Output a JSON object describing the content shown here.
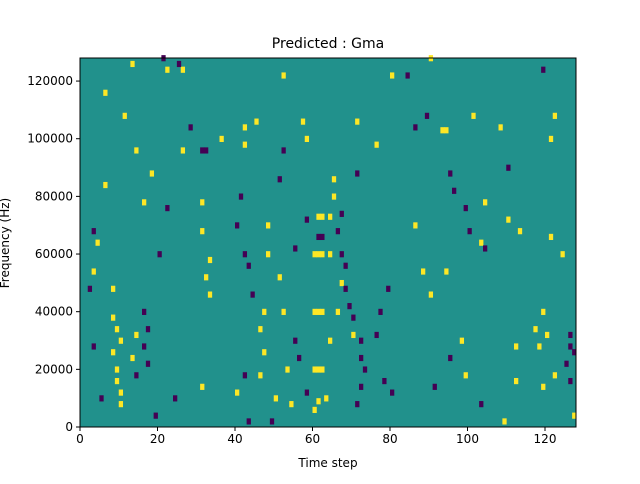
{
  "chart_data": {
    "type": "heatmap",
    "title": "Predicted : Gma",
    "xlabel": "Time step",
    "ylabel": "Frequency (Hz)",
    "xlim": [
      0,
      128
    ],
    "ylim": [
      0,
      128000
    ],
    "x_ticks": [
      {
        "value": 0,
        "label": "0"
      },
      {
        "value": 20,
        "label": "20"
      },
      {
        "value": 40,
        "label": "40"
      },
      {
        "value": 60,
        "label": "60"
      },
      {
        "value": 80,
        "label": "80"
      },
      {
        "value": 100,
        "label": "100"
      },
      {
        "value": 120,
        "label": "120"
      }
    ],
    "y_ticks": [
      {
        "value": 0,
        "label": "0"
      },
      {
        "value": 20000,
        "label": "20000"
      },
      {
        "value": 40000,
        "label": "40000"
      },
      {
        "value": 60000,
        "label": "60000"
      },
      {
        "value": 80000,
        "label": "80000"
      },
      {
        "value": 100000,
        "label": "100000"
      },
      {
        "value": 120000,
        "label": "120000"
      }
    ],
    "colormap": "viridis",
    "colors": {
      "low": "#440154",
      "mid": "#21918c",
      "high": "#fde725"
    },
    "background_value": 0,
    "cells": [
      {
        "t": 60,
        "f": 60000,
        "value": 1
      },
      {
        "t": 61,
        "f": 60000,
        "value": 1
      },
      {
        "t": 62,
        "f": 60000,
        "value": 1
      },
      {
        "t": 60,
        "f": 40000,
        "value": 1
      },
      {
        "t": 61,
        "f": 40000,
        "value": 1
      },
      {
        "t": 62,
        "f": 40000,
        "value": 1
      },
      {
        "t": 60,
        "f": 20000,
        "value": 1
      },
      {
        "t": 61,
        "f": 20000,
        "value": 1
      },
      {
        "t": 62,
        "f": 20000,
        "value": 1
      },
      {
        "t": 61,
        "f": 73000,
        "value": 1
      },
      {
        "t": 62,
        "f": 73000,
        "value": 1
      },
      {
        "t": 63,
        "f": 10000,
        "value": 1
      },
      {
        "t": 64,
        "f": 30000,
        "value": 1
      },
      {
        "t": 64,
        "f": 60000,
        "value": 1
      },
      {
        "t": 64,
        "f": 73000,
        "value": 1
      },
      {
        "t": 60,
        "f": 6000,
        "value": 1
      },
      {
        "t": 61,
        "f": 9000,
        "value": 1
      },
      {
        "t": 65,
        "f": 86000,
        "value": 1
      },
      {
        "t": 65,
        "f": 80000,
        "value": 1
      },
      {
        "t": 8,
        "f": 38000,
        "value": 1
      },
      {
        "t": 9,
        "f": 34000,
        "value": 1
      },
      {
        "t": 8,
        "f": 26000,
        "value": 1
      },
      {
        "t": 9,
        "f": 20000,
        "value": 1
      },
      {
        "t": 9,
        "f": 16000,
        "value": 1
      },
      {
        "t": 10,
        "f": 12000,
        "value": 1
      },
      {
        "t": 10,
        "f": 8000,
        "value": 1
      },
      {
        "t": 10,
        "f": 30000,
        "value": 1
      },
      {
        "t": 8,
        "f": 48000,
        "value": 1
      },
      {
        "t": 93,
        "f": 103000,
        "value": 1
      },
      {
        "t": 94,
        "f": 103000,
        "value": 1
      },
      {
        "t": 32,
        "f": 52000,
        "value": 1
      },
      {
        "t": 33,
        "f": 46000,
        "value": 1
      },
      {
        "t": 31,
        "f": 68000,
        "value": 1
      },
      {
        "t": 31,
        "f": 78000,
        "value": 1
      },
      {
        "t": 33,
        "f": 58000,
        "value": 1
      },
      {
        "t": 31,
        "f": 14000,
        "value": 1
      },
      {
        "t": 46,
        "f": 34000,
        "value": 1
      },
      {
        "t": 47,
        "f": 26000,
        "value": 1
      },
      {
        "t": 48,
        "f": 60000,
        "value": 1
      },
      {
        "t": 48,
        "f": 70000,
        "value": 1
      },
      {
        "t": 47,
        "f": 40000,
        "value": 1
      },
      {
        "t": 46,
        "f": 18000,
        "value": 1
      },
      {
        "t": 42,
        "f": 104000,
        "value": 1
      },
      {
        "t": 42,
        "f": 98000,
        "value": 1
      },
      {
        "t": 40,
        "f": 12000,
        "value": 1
      },
      {
        "t": 117,
        "f": 34000,
        "value": 1
      },
      {
        "t": 118,
        "f": 28000,
        "value": 1
      },
      {
        "t": 119,
        "f": 14000,
        "value": 1
      },
      {
        "t": 120,
        "f": 32000,
        "value": 1
      },
      {
        "t": 122,
        "f": 18000,
        "value": 1
      },
      {
        "t": 119,
        "f": 40000,
        "value": 1
      },
      {
        "t": 121,
        "f": 100000,
        "value": 1
      },
      {
        "t": 122,
        "f": 108000,
        "value": 1
      },
      {
        "t": 121,
        "f": 66000,
        "value": 1
      },
      {
        "t": 127,
        "f": 4000,
        "value": 1
      },
      {
        "t": 109,
        "f": 2000,
        "value": 1
      },
      {
        "t": 103,
        "f": 64000,
        "value": 1
      },
      {
        "t": 98,
        "f": 30000,
        "value": 1
      },
      {
        "t": 99,
        "f": 18000,
        "value": 1
      },
      {
        "t": 94,
        "f": 54000,
        "value": 1
      },
      {
        "t": 14,
        "f": 32000,
        "value": 1
      },
      {
        "t": 13,
        "f": 24000,
        "value": 1
      },
      {
        "t": 16,
        "f": 78000,
        "value": 1
      },
      {
        "t": 22,
        "f": 124000,
        "value": 1
      },
      {
        "t": 26,
        "f": 124000,
        "value": 1
      },
      {
        "t": 14,
        "f": 96000,
        "value": 1
      },
      {
        "t": 18,
        "f": 88000,
        "value": 1
      },
      {
        "t": 4,
        "f": 64000,
        "value": 1
      },
      {
        "t": 3,
        "f": 54000,
        "value": 1
      },
      {
        "t": 6,
        "f": 84000,
        "value": 1
      },
      {
        "t": 11,
        "f": 108000,
        "value": 1
      },
      {
        "t": 6,
        "f": 116000,
        "value": 1
      },
      {
        "t": 13,
        "f": 126000,
        "value": 1
      },
      {
        "t": 26,
        "f": 96000,
        "value": 1
      },
      {
        "t": 36,
        "f": 100000,
        "value": 1
      },
      {
        "t": 45,
        "f": 106000,
        "value": 1
      },
      {
        "t": 51,
        "f": 52000,
        "value": 1
      },
      {
        "t": 52,
        "f": 40000,
        "value": 1
      },
      {
        "t": 50,
        "f": 10000,
        "value": 1
      },
      {
        "t": 53,
        "f": 20000,
        "value": 1
      },
      {
        "t": 54,
        "f": 8000,
        "value": 1
      },
      {
        "t": 52,
        "f": 122000,
        "value": 1
      },
      {
        "t": 57,
        "f": 106000,
        "value": 1
      },
      {
        "t": 58,
        "f": 100000,
        "value": 1
      },
      {
        "t": 66,
        "f": 40000,
        "value": 1
      },
      {
        "t": 67,
        "f": 50000,
        "value": 1
      },
      {
        "t": 70,
        "f": 32000,
        "value": 1
      },
      {
        "t": 71,
        "f": 106000,
        "value": 1
      },
      {
        "t": 76,
        "f": 98000,
        "value": 1
      },
      {
        "t": 80,
        "f": 122000,
        "value": 1
      },
      {
        "t": 86,
        "f": 70000,
        "value": 1
      },
      {
        "t": 88,
        "f": 54000,
        "value": 1
      },
      {
        "t": 90,
        "f": 46000,
        "value": 1
      },
      {
        "t": 101,
        "f": 108000,
        "value": 1
      },
      {
        "t": 108,
        "f": 104000,
        "value": 1
      },
      {
        "t": 104,
        "f": 78000,
        "value": 1
      },
      {
        "t": 110,
        "f": 72000,
        "value": 1
      },
      {
        "t": 112,
        "f": 28000,
        "value": 1
      },
      {
        "t": 113,
        "f": 68000,
        "value": 1
      },
      {
        "t": 124,
        "f": 60000,
        "value": 1
      },
      {
        "t": 112,
        "f": 16000,
        "value": 1
      },
      {
        "t": 90,
        "f": 128000,
        "value": 1
      },
      {
        "t": 61,
        "f": 66000,
        "value": -1
      },
      {
        "t": 62,
        "f": 66000,
        "value": -1
      },
      {
        "t": 67,
        "f": 60000,
        "value": -1
      },
      {
        "t": 68,
        "f": 56000,
        "value": -1
      },
      {
        "t": 68,
        "f": 48000,
        "value": -1
      },
      {
        "t": 69,
        "f": 42000,
        "value": -1
      },
      {
        "t": 70,
        "f": 38000,
        "value": -1
      },
      {
        "t": 72,
        "f": 30000,
        "value": -1
      },
      {
        "t": 72,
        "f": 24000,
        "value": -1
      },
      {
        "t": 73,
        "f": 20000,
        "value": -1
      },
      {
        "t": 72,
        "f": 14000,
        "value": -1
      },
      {
        "t": 71,
        "f": 8000,
        "value": -1
      },
      {
        "t": 76,
        "f": 32000,
        "value": -1
      },
      {
        "t": 77,
        "f": 40000,
        "value": -1
      },
      {
        "t": 79,
        "f": 48000,
        "value": -1
      },
      {
        "t": 78,
        "f": 16000,
        "value": -1
      },
      {
        "t": 80,
        "f": 12000,
        "value": -1
      },
      {
        "t": 66,
        "f": 68000,
        "value": -1
      },
      {
        "t": 67,
        "f": 74000,
        "value": -1
      },
      {
        "t": 71,
        "f": 88000,
        "value": -1
      },
      {
        "t": 3,
        "f": 68000,
        "value": -1
      },
      {
        "t": 2,
        "f": 48000,
        "value": -1
      },
      {
        "t": 5,
        "f": 10000,
        "value": -1
      },
      {
        "t": 3,
        "f": 28000,
        "value": -1
      },
      {
        "t": 16,
        "f": 40000,
        "value": -1
      },
      {
        "t": 16,
        "f": 28000,
        "value": -1
      },
      {
        "t": 17,
        "f": 22000,
        "value": -1
      },
      {
        "t": 17,
        "f": 34000,
        "value": -1
      },
      {
        "t": 14,
        "f": 18000,
        "value": -1
      },
      {
        "t": 20,
        "f": 60000,
        "value": -1
      },
      {
        "t": 22,
        "f": 76000,
        "value": -1
      },
      {
        "t": 24,
        "f": 10000,
        "value": -1
      },
      {
        "t": 19,
        "f": 4000,
        "value": -1
      },
      {
        "t": 31,
        "f": 96000,
        "value": -1
      },
      {
        "t": 32,
        "f": 96000,
        "value": -1
      },
      {
        "t": 28,
        "f": 104000,
        "value": -1
      },
      {
        "t": 21,
        "f": 128000,
        "value": -1
      },
      {
        "t": 25,
        "f": 126000,
        "value": -1
      },
      {
        "t": 40,
        "f": 70000,
        "value": -1
      },
      {
        "t": 41,
        "f": 80000,
        "value": -1
      },
      {
        "t": 42,
        "f": 60000,
        "value": -1
      },
      {
        "t": 43,
        "f": 56000,
        "value": -1
      },
      {
        "t": 44,
        "f": 46000,
        "value": -1
      },
      {
        "t": 42,
        "f": 18000,
        "value": -1
      },
      {
        "t": 43,
        "f": 2000,
        "value": -1
      },
      {
        "t": 49,
        "f": 2000,
        "value": -1
      },
      {
        "t": 55,
        "f": 30000,
        "value": -1
      },
      {
        "t": 56,
        "f": 24000,
        "value": -1
      },
      {
        "t": 58,
        "f": 12000,
        "value": -1
      },
      {
        "t": 55,
        "f": 62000,
        "value": -1
      },
      {
        "t": 51,
        "f": 86000,
        "value": -1
      },
      {
        "t": 52,
        "f": 96000,
        "value": -1
      },
      {
        "t": 58,
        "f": 72000,
        "value": -1
      },
      {
        "t": 89,
        "f": 108000,
        "value": -1
      },
      {
        "t": 95,
        "f": 88000,
        "value": -1
      },
      {
        "t": 96,
        "f": 82000,
        "value": -1
      },
      {
        "t": 99,
        "f": 76000,
        "value": -1
      },
      {
        "t": 100,
        "f": 68000,
        "value": -1
      },
      {
        "t": 104,
        "f": 62000,
        "value": -1
      },
      {
        "t": 95,
        "f": 24000,
        "value": -1
      },
      {
        "t": 103,
        "f": 8000,
        "value": -1
      },
      {
        "t": 126,
        "f": 28000,
        "value": -1
      },
      {
        "t": 127,
        "f": 26000,
        "value": -1
      },
      {
        "t": 125,
        "f": 22000,
        "value": -1
      },
      {
        "t": 126,
        "f": 16000,
        "value": -1
      },
      {
        "t": 126,
        "f": 32000,
        "value": -1
      },
      {
        "t": 119,
        "f": 124000,
        "value": -1
      },
      {
        "t": 110,
        "f": 90000,
        "value": -1
      },
      {
        "t": 86,
        "f": 104000,
        "value": -1
      },
      {
        "t": 84,
        "f": 122000,
        "value": -1
      },
      {
        "t": 91,
        "f": 14000,
        "value": -1
      }
    ]
  }
}
